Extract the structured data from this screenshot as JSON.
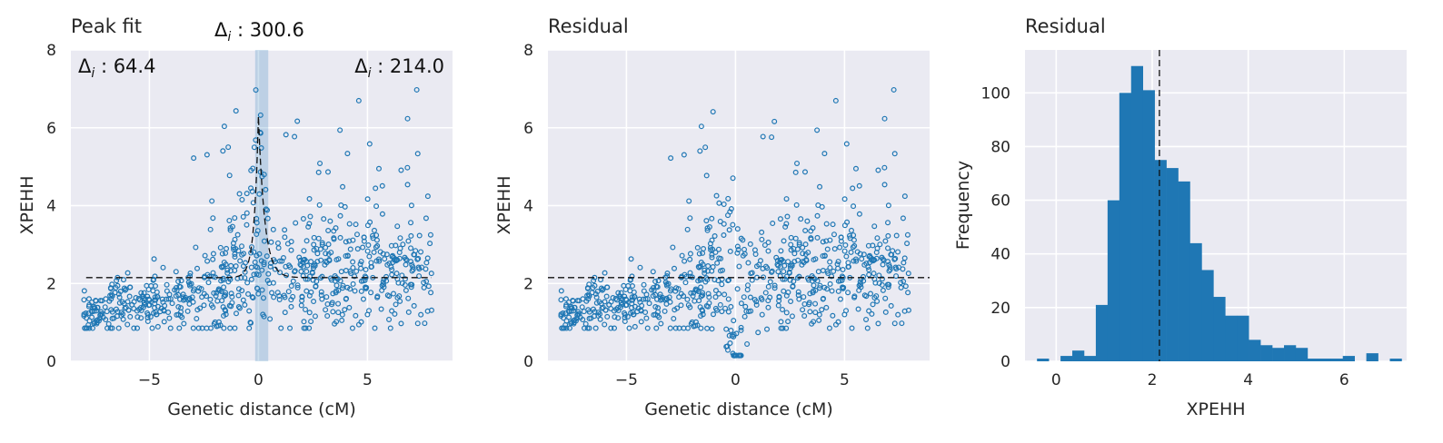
{
  "chart_data": [
    {
      "type": "scatter",
      "title": "Peak fit",
      "xlabel": "Genetic distance (cM)",
      "ylabel": "XPEHH",
      "xlim": [
        -8.6,
        8.9
      ],
      "ylim": [
        0,
        8.0
      ],
      "xticks": [
        -5,
        0,
        5
      ],
      "xtick_labels": [
        "−5",
        "0",
        "5"
      ],
      "yticks": [
        0,
        2,
        4,
        6,
        8
      ],
      "grid": true,
      "colors": {
        "points": "#1f77b4",
        "background": "#eaeaf2",
        "shade": "#1f77b4",
        "fit": "#111111"
      },
      "annotations": [
        {
          "delta": "Δ",
          "sub": "i",
          "value": " : 300.6",
          "position": "top-center"
        },
        {
          "delta": "Δ",
          "sub": "i",
          "value": " : 64.4",
          "position": "top-left"
        },
        {
          "delta": "Δ",
          "sub": "i",
          "value": " : 214.0",
          "position": "top-right"
        }
      ],
      "baseline": 2.15,
      "peak_center": 0.0,
      "peak_height": 6.3,
      "shade_range": [
        -0.15,
        0.45
      ],
      "points_seed": 7,
      "n_points": 720
    },
    {
      "type": "scatter",
      "title": "Residual",
      "xlabel": "Genetic distance (cM)",
      "ylabel": "XPEHH",
      "xlim": [
        -8.6,
        8.9
      ],
      "ylim": [
        0,
        8.0
      ],
      "xticks": [
        -5,
        0,
        5
      ],
      "xtick_labels": [
        "−5",
        "0",
        "5"
      ],
      "yticks": [
        0,
        2,
        4,
        6,
        8
      ],
      "grid": true,
      "baseline": 2.15
    },
    {
      "type": "bar",
      "title": "Residual",
      "xlabel": "XPEHH",
      "ylabel": "Frequency",
      "xlim": [
        -0.65,
        7.3
      ],
      "ylim": [
        0,
        116
      ],
      "xticks": [
        0,
        2,
        4,
        6
      ],
      "yticks": [
        0,
        20,
        40,
        60,
        80,
        100
      ],
      "grid": true,
      "bin_edges_start": -0.4,
      "bin_width": 0.245,
      "counts": [
        1,
        0,
        2,
        4,
        2,
        21,
        60,
        100,
        110,
        101,
        75,
        72,
        67,
        44,
        34,
        24,
        17,
        17,
        8,
        6,
        5,
        6,
        5,
        1,
        1,
        1,
        2,
        0,
        3,
        0,
        1
      ],
      "vline": 2.15
    }
  ]
}
